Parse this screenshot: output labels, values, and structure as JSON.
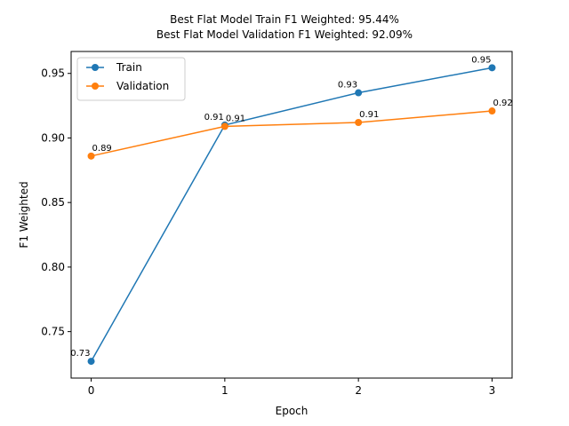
{
  "chart_data": {
    "type": "line",
    "title_line1": "Best Flat Model Train F1 Weighted: 95.44%",
    "title_line2": "Best Flat Model Validation F1 Weighted: 92.09%",
    "xlabel": "Epoch",
    "ylabel": "F1 Weighted",
    "x": [
      0,
      1,
      2,
      3
    ],
    "x_ticks": [
      "0",
      "1",
      "2",
      "3"
    ],
    "y_ticks": [
      "0.75",
      "0.80",
      "0.85",
      "0.90",
      "0.95"
    ],
    "xlim": [
      -0.15,
      3.15
    ],
    "ylim": [
      0.714,
      0.967
    ],
    "legend_position": "top-left",
    "grid": false,
    "series": [
      {
        "name": "Train",
        "color": "#1f77b4",
        "values": [
          0.727,
          0.91,
          0.935,
          0.9544
        ],
        "labels": [
          "0.73",
          "0.91",
          "0.93",
          "0.95"
        ]
      },
      {
        "name": "Validation",
        "color": "#ff7f0e",
        "values": [
          0.886,
          0.909,
          0.912,
          0.9209
        ],
        "labels": [
          "0.89",
          "0.91",
          "0.91",
          "0.92"
        ]
      }
    ]
  }
}
